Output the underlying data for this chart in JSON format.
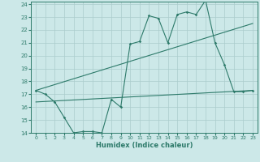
{
  "title": "",
  "xlabel": "Humidex (Indice chaleur)",
  "background_color": "#cce8e8",
  "line_color": "#2d7a6a",
  "grid_color": "#aacccc",
  "xlim": [
    -0.5,
    23.5
  ],
  "ylim": [
    14,
    24.2
  ],
  "xticks": [
    0,
    1,
    2,
    3,
    4,
    5,
    6,
    7,
    8,
    9,
    10,
    11,
    12,
    13,
    14,
    15,
    16,
    17,
    18,
    19,
    20,
    21,
    22,
    23
  ],
  "yticks": [
    14,
    15,
    16,
    17,
    18,
    19,
    20,
    21,
    22,
    23,
    24
  ],
  "line1_x": [
    0,
    1,
    2,
    3,
    4,
    5,
    6,
    7,
    8,
    9,
    10,
    11,
    12,
    13,
    14,
    15,
    16,
    17,
    18,
    19,
    20,
    21,
    22,
    23
  ],
  "line1_y": [
    17.3,
    17.0,
    16.4,
    15.2,
    14.0,
    14.1,
    14.1,
    14.0,
    16.6,
    16.0,
    20.9,
    21.1,
    23.1,
    22.9,
    21.0,
    23.2,
    23.4,
    23.2,
    24.3,
    21.0,
    19.3,
    17.2,
    17.2,
    17.3
  ],
  "line2_x": [
    0,
    23
  ],
  "line2_y": [
    17.3,
    22.5
  ],
  "line3_x": [
    0,
    23
  ],
  "line3_y": [
    16.4,
    17.3
  ]
}
